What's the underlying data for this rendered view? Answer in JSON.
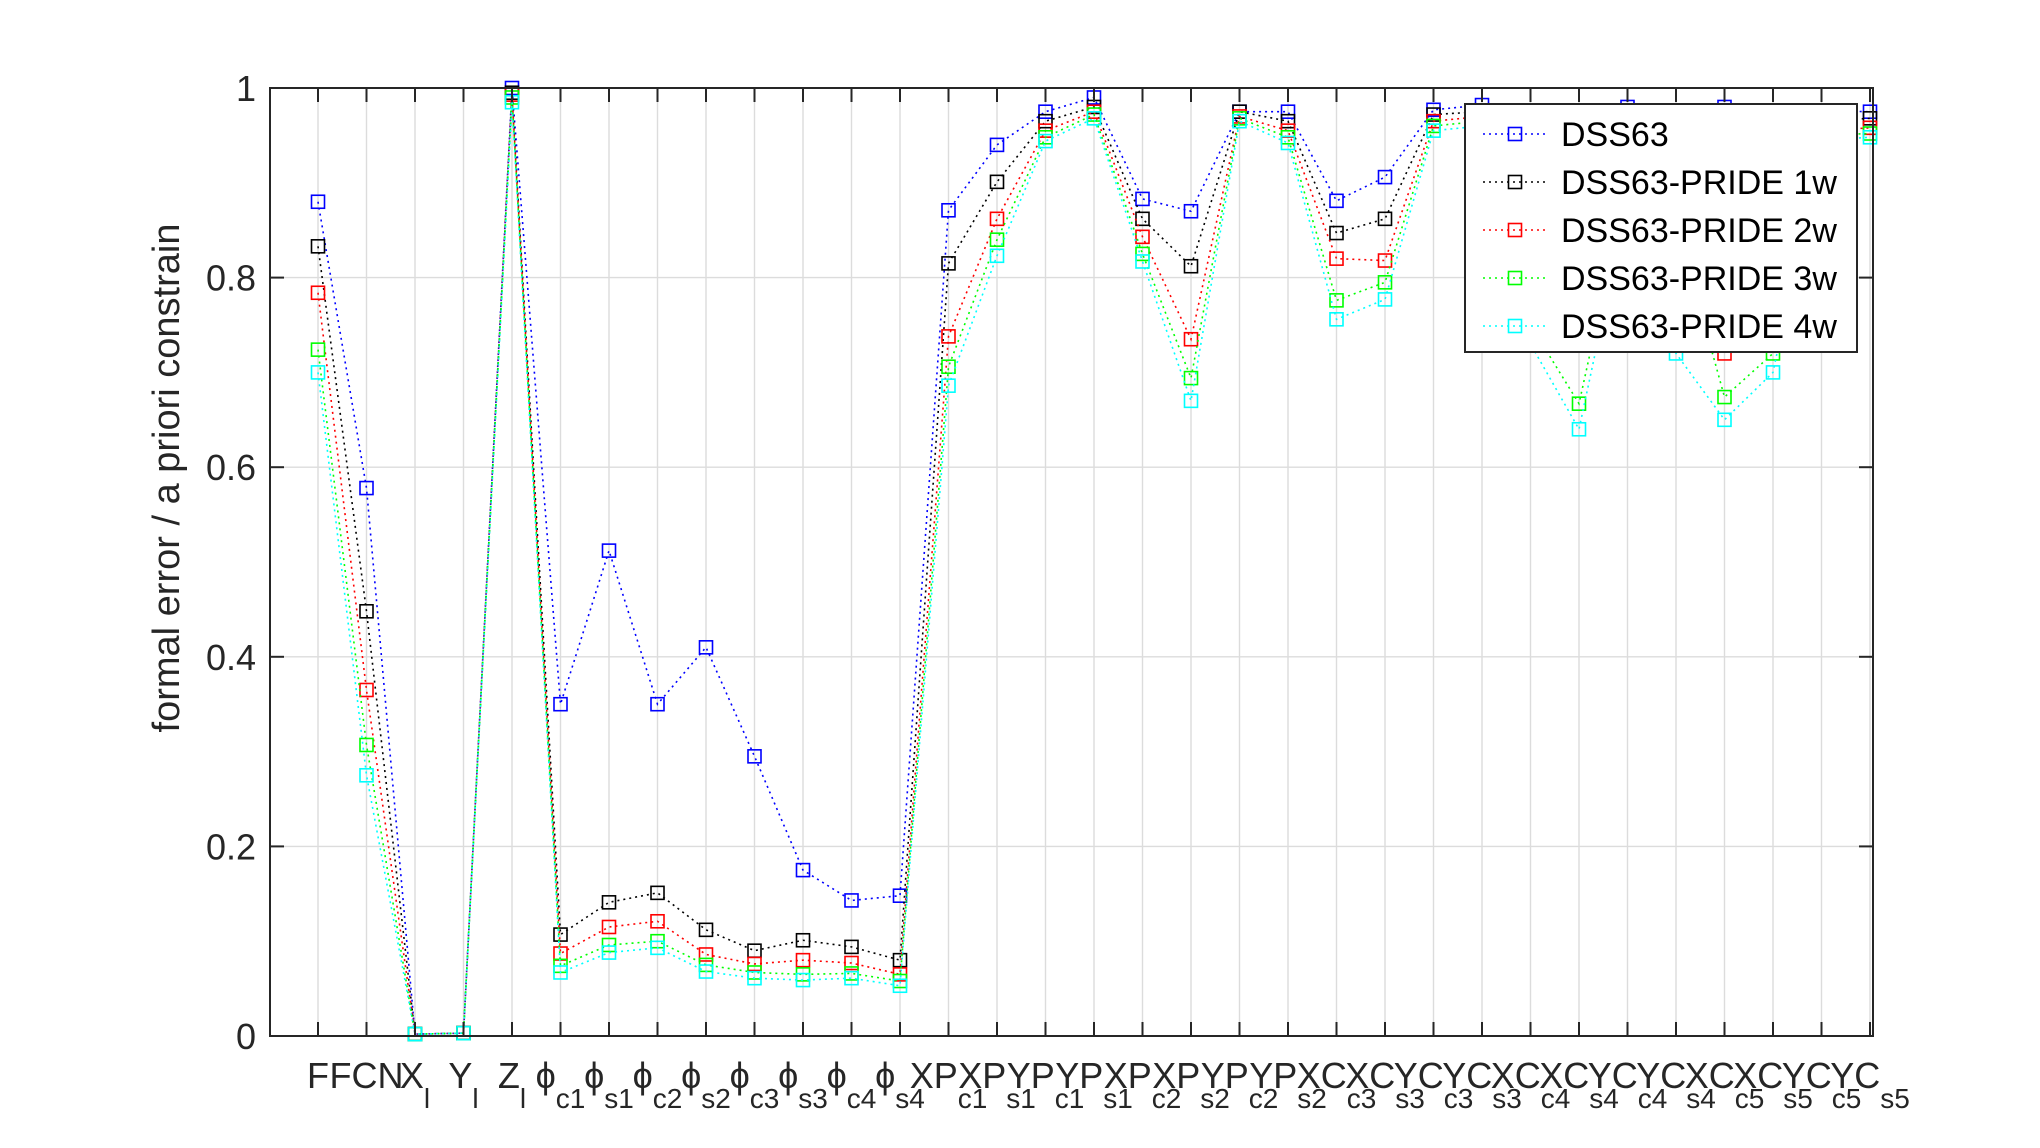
{
  "chart_data": {
    "type": "line",
    "ylabel": "formal error / a priori constrain",
    "ylim": [
      0,
      1
    ],
    "yticks": [
      0,
      0.2,
      0.4,
      0.6,
      0.8,
      1
    ],
    "ytick_labels": [
      "0",
      "0.2",
      "0.4",
      "0.6",
      "0.8",
      "1"
    ],
    "grid": true,
    "legend_position": "top-right",
    "marker": "square",
    "line_style": "dotted",
    "categories": [
      {
        "main": "F",
        "sub": ""
      },
      {
        "main": "FCN",
        "sub": ""
      },
      {
        "main": "X",
        "sub": "l"
      },
      {
        "main": "Y",
        "sub": "l"
      },
      {
        "main": "Z",
        "sub": "l"
      },
      {
        "main": "ϕ",
        "sub": "c1"
      },
      {
        "main": "ϕ",
        "sub": "s1"
      },
      {
        "main": "ϕ",
        "sub": "c2"
      },
      {
        "main": "ϕ",
        "sub": "s2"
      },
      {
        "main": "ϕ",
        "sub": "c3"
      },
      {
        "main": "ϕ",
        "sub": "s3"
      },
      {
        "main": "ϕ",
        "sub": "c4"
      },
      {
        "main": "ϕ",
        "sub": "s4"
      },
      {
        "main": "XP",
        "sub": "c1"
      },
      {
        "main": "XP",
        "sub": "s1"
      },
      {
        "main": "YP",
        "sub": "c1"
      },
      {
        "main": "YP",
        "sub": "s1"
      },
      {
        "main": "XP",
        "sub": "c2"
      },
      {
        "main": "XP",
        "sub": "s2"
      },
      {
        "main": "YP",
        "sub": "c2"
      },
      {
        "main": "YP",
        "sub": "s2"
      },
      {
        "main": "XC",
        "sub": "c3"
      },
      {
        "main": "XC",
        "sub": "s3"
      },
      {
        "main": "YC",
        "sub": "c3"
      },
      {
        "main": "YC",
        "sub": "s3"
      },
      {
        "main": "XC",
        "sub": "c4"
      },
      {
        "main": "XC",
        "sub": "s4"
      },
      {
        "main": "YC",
        "sub": "c4"
      },
      {
        "main": "YC",
        "sub": "s4"
      },
      {
        "main": "XC",
        "sub": "c5"
      },
      {
        "main": "XC",
        "sub": "s5"
      },
      {
        "main": "YC",
        "sub": "c5"
      },
      {
        "main": "YC",
        "sub": "s5"
      }
    ],
    "series": [
      {
        "name": "DSS63",
        "color": "#0000ff",
        "values": [
          0.88,
          0.578,
          0.002,
          0.003,
          1.0,
          0.35,
          0.512,
          0.35,
          0.41,
          0.295,
          0.175,
          0.143,
          0.148,
          0.871,
          0.94,
          0.975,
          0.99,
          0.883,
          0.87,
          0.975,
          0.975,
          0.881,
          0.906,
          0.977,
          0.982,
          0.96,
          0.975,
          0.98,
          0.975,
          0.98,
          0.97,
          0.976,
          0.975
        ]
      },
      {
        "name": "DSS63-PRIDE 1w",
        "color": "#000000",
        "values": [
          0.833,
          0.448,
          0.002,
          0.003,
          0.995,
          0.107,
          0.141,
          0.151,
          0.112,
          0.09,
          0.101,
          0.094,
          0.08,
          0.815,
          0.901,
          0.965,
          0.98,
          0.862,
          0.812,
          0.975,
          0.965,
          0.847,
          0.862,
          0.972,
          0.975,
          0.9,
          0.9,
          0.96,
          0.96,
          0.96,
          0.96,
          0.965,
          0.968
        ]
      },
      {
        "name": "DSS63-PRIDE 2w",
        "color": "#ff0000",
        "values": [
          0.784,
          0.365,
          0.002,
          0.003,
          0.993,
          0.087,
          0.115,
          0.121,
          0.086,
          0.076,
          0.08,
          0.077,
          0.065,
          0.738,
          0.862,
          0.955,
          0.975,
          0.843,
          0.735,
          0.97,
          0.955,
          0.82,
          0.818,
          0.965,
          0.97,
          0.8,
          0.74,
          0.93,
          0.9,
          0.72,
          0.8,
          0.955,
          0.958
        ]
      },
      {
        "name": "DSS63-PRIDE 3w",
        "color": "#00ff00",
        "values": [
          0.724,
          0.307,
          0.002,
          0.003,
          0.99,
          0.074,
          0.096,
          0.1,
          0.075,
          0.067,
          0.065,
          0.066,
          0.058,
          0.706,
          0.84,
          0.948,
          0.972,
          0.825,
          0.694,
          0.968,
          0.948,
          0.776,
          0.795,
          0.96,
          0.965,
          0.75,
          0.667,
          0.9,
          0.86,
          0.674,
          0.72,
          0.95,
          0.952
        ]
      },
      {
        "name": "DSS63-PRIDE 4w",
        "color": "#00ffff",
        "values": [
          0.7,
          0.275,
          0.002,
          0.003,
          0.985,
          0.067,
          0.088,
          0.093,
          0.068,
          0.061,
          0.059,
          0.061,
          0.053,
          0.686,
          0.823,
          0.944,
          0.968,
          0.817,
          0.67,
          0.965,
          0.942,
          0.756,
          0.777,
          0.955,
          0.96,
          0.73,
          0.64,
          0.88,
          0.72,
          0.65,
          0.7,
          0.945,
          0.948
        ]
      }
    ]
  }
}
